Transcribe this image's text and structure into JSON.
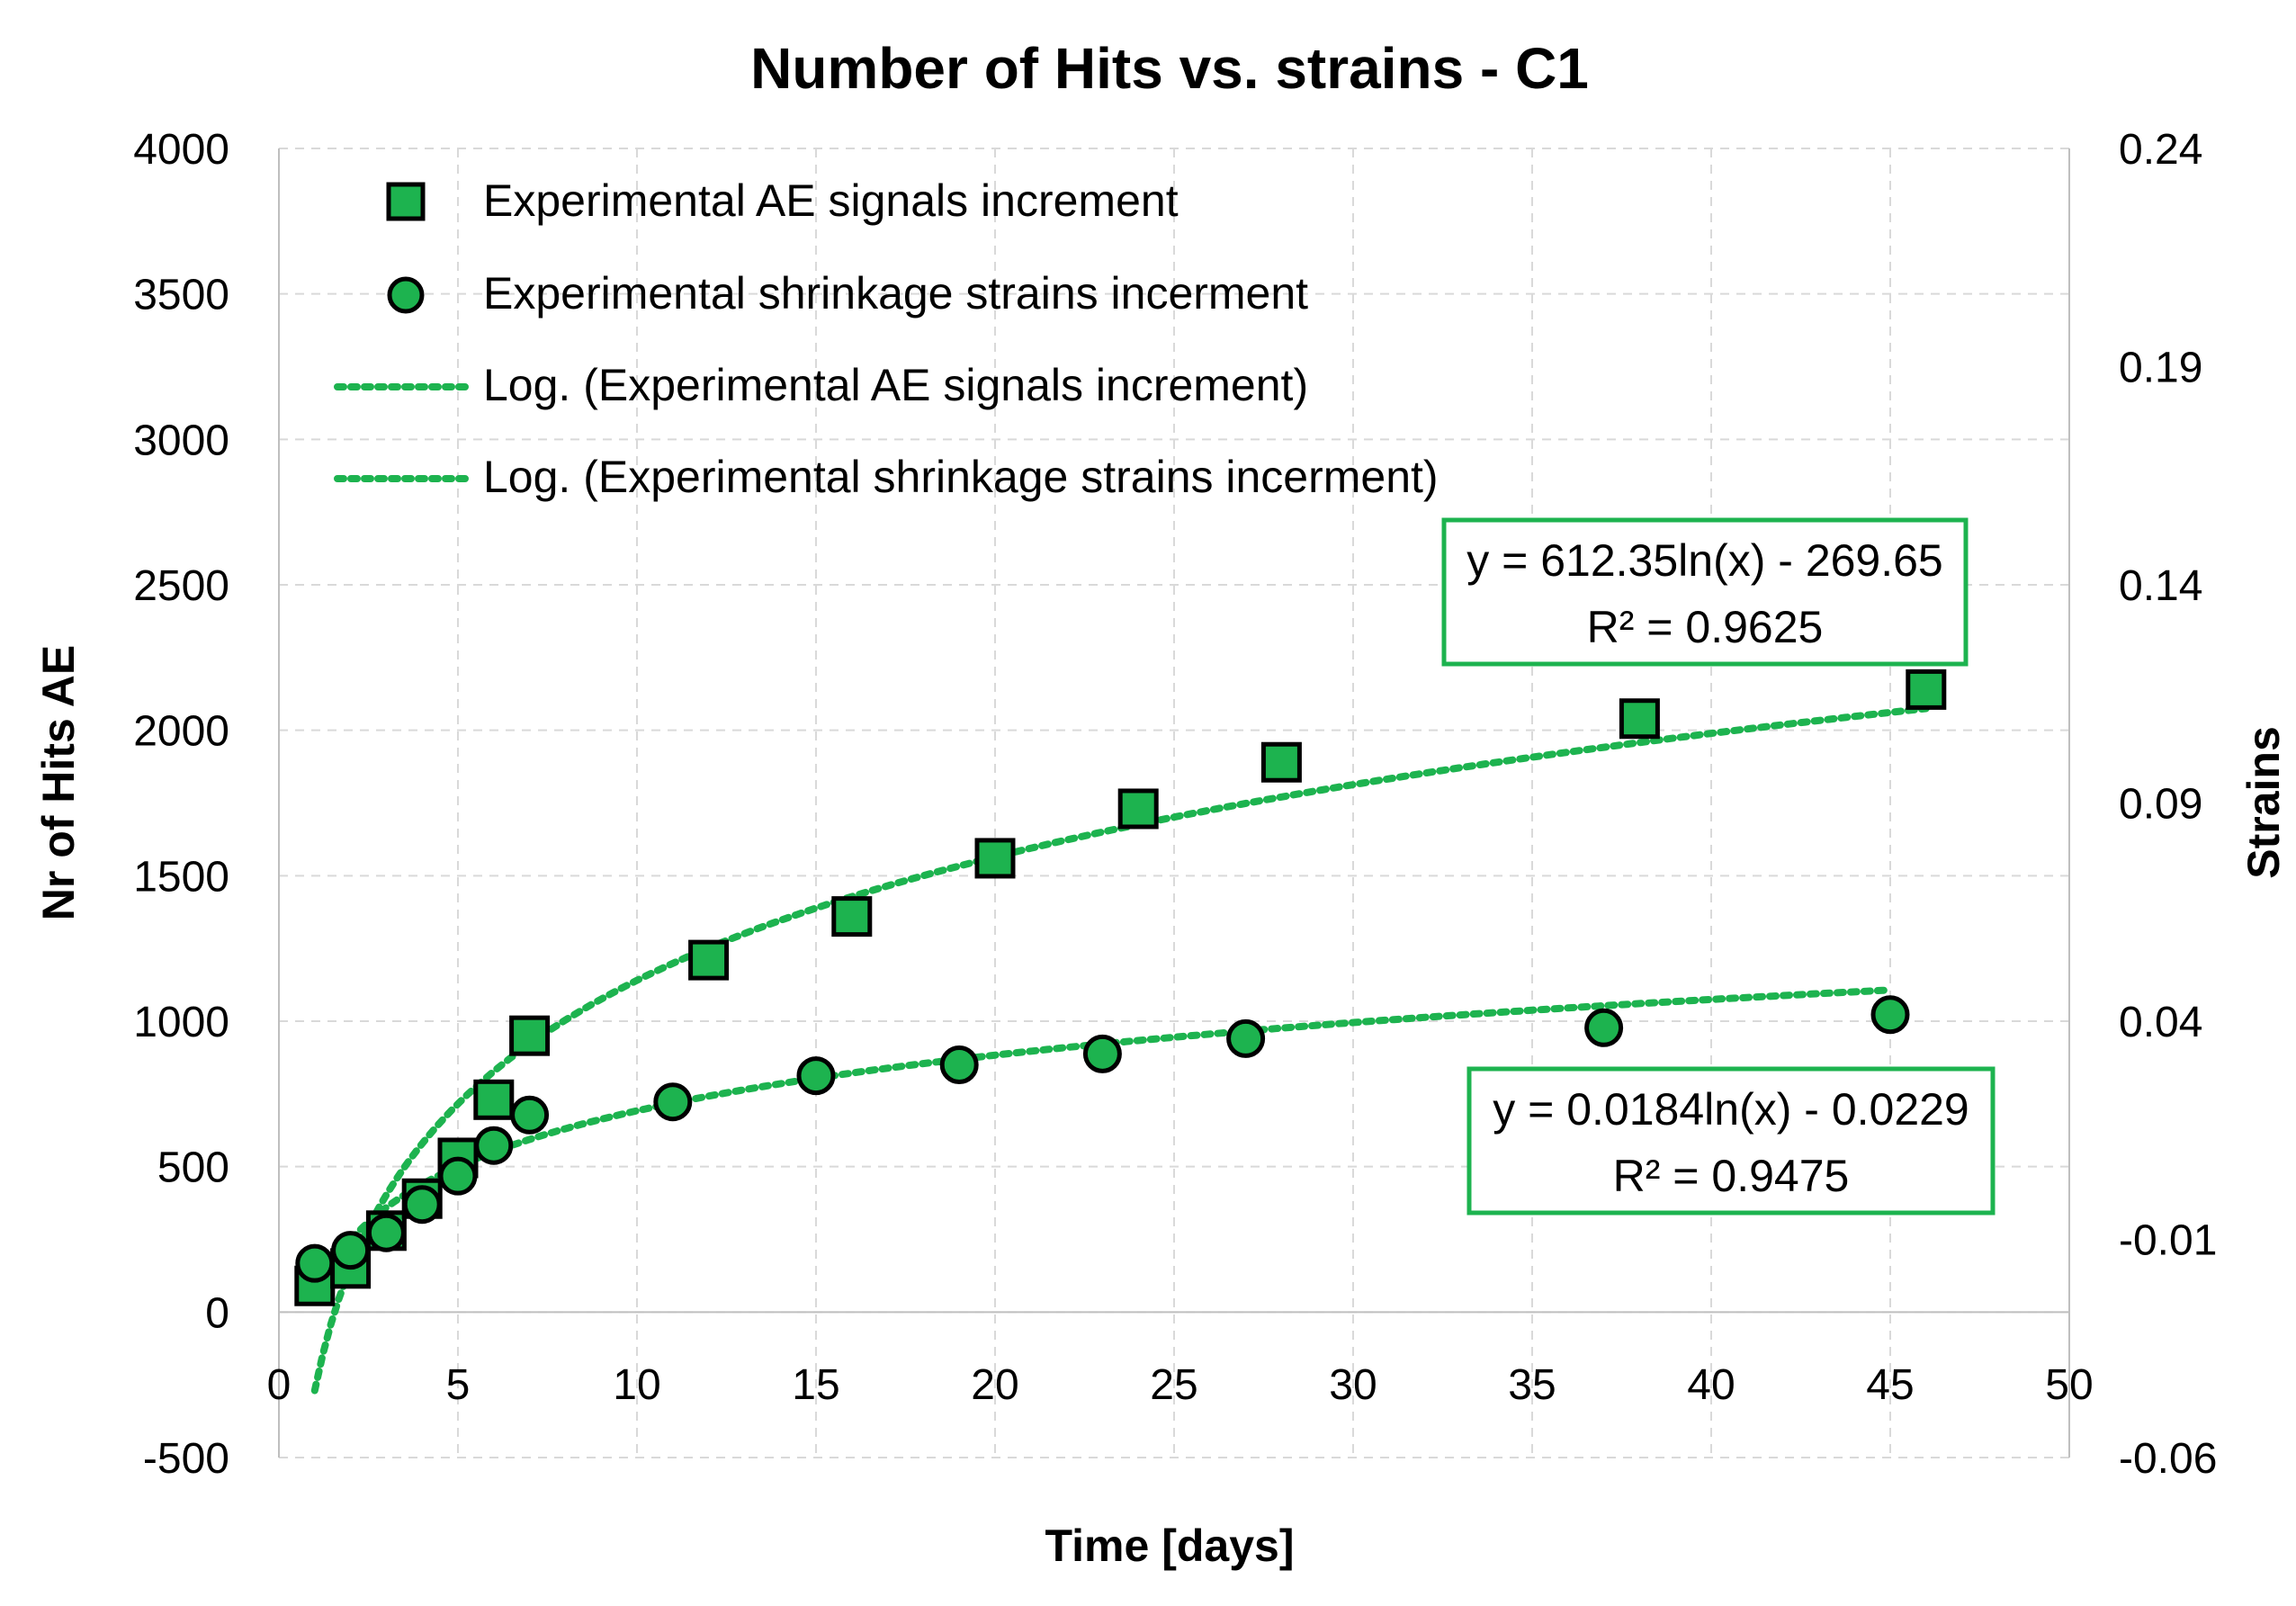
{
  "chart_data": {
    "type": "scatter",
    "title": "Number of Hits vs. strains - C1",
    "xlabel": "Time [days]",
    "ylabel": "Nr of Hits AE",
    "y2label": "Strains",
    "xlim": [
      0,
      50
    ],
    "ylim": [
      -500,
      4000
    ],
    "y2lim": [
      -0.06,
      0.24
    ],
    "xticks": [
      "0",
      "5",
      "10",
      "15",
      "20",
      "25",
      "30",
      "35",
      "40",
      "45",
      "50"
    ],
    "yticks": [
      "-500",
      "0",
      "500",
      "1000",
      "1500",
      "2000",
      "2500",
      "3000",
      "3500",
      "4000"
    ],
    "y2ticks": [
      "-0.06",
      "-0.01",
      "0.04",
      "0.09",
      "0.14",
      "0.19",
      "0.24"
    ],
    "grid": true,
    "legend_position": "top-left",
    "colors": {
      "marker_fill": "#1db34f",
      "marker_edge": "#000000",
      "trend": "#1db34f",
      "box": "#1db34f"
    },
    "series": [
      {
        "name": "Experimental AE signals increment",
        "marker": "square",
        "axis": "left",
        "x": [
          1,
          2,
          3,
          4,
          5,
          6,
          7,
          12,
          16,
          20,
          24,
          28,
          38,
          46
        ],
        "y": [
          90,
          150,
          280,
          390,
          530,
          730,
          950,
          1210,
          1360,
          1560,
          1730,
          1890,
          2040,
          2140
        ]
      },
      {
        "name": "Experimental shrinkage strains incerment",
        "marker": "circle",
        "axis": "right",
        "x": [
          1,
          2,
          3,
          4,
          5,
          6,
          7,
          11,
          15,
          19,
          23,
          27,
          37,
          45
        ],
        "y": [
          -0.0155,
          -0.0125,
          -0.0085,
          -0.002,
          0.0045,
          0.0115,
          0.0185,
          0.0215,
          0.0275,
          0.03,
          0.0325,
          0.036,
          0.0385,
          0.0415
        ]
      }
    ],
    "trendlines": [
      {
        "name": "Log. (Experimental AE signals increment)",
        "axis": "left",
        "a": 612.35,
        "b": -269.65,
        "x_range": [
          1,
          46
        ]
      },
      {
        "name": "Log. (Experimental shrinkage strains incerment)",
        "axis": "right",
        "a": 0.0184,
        "b": -0.0229,
        "x_range": [
          1,
          45
        ]
      }
    ],
    "equations": [
      {
        "line1": "y = 612.35ln(x) - 269.65",
        "line2": "R² = 0.9625"
      },
      {
        "line1": "y = 0.0184ln(x) - 0.0229",
        "line2": "R² = 0.9475"
      }
    ]
  }
}
